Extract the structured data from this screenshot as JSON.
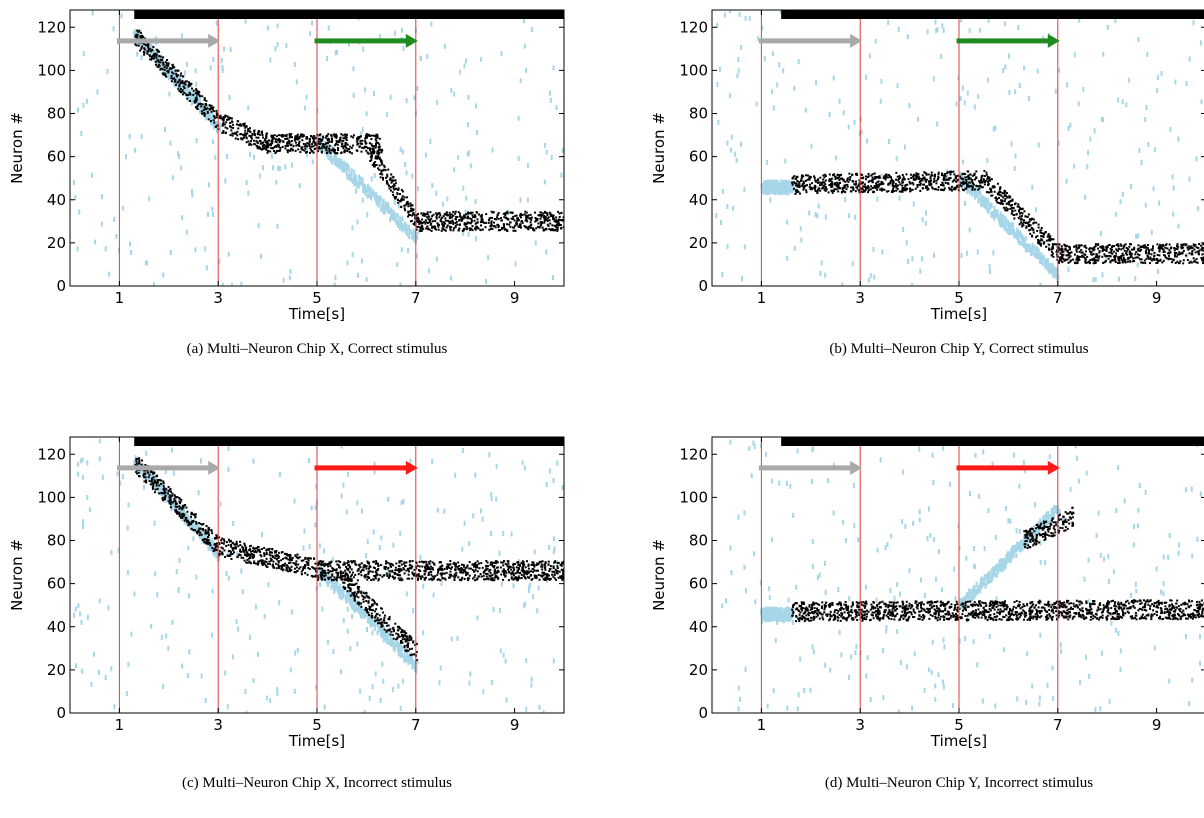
{
  "figure": {
    "colors": {
      "spikes": "#000000",
      "input_spikes": "#a6d6e8",
      "markers": "#e23b3b",
      "top_bar": "#000000",
      "training_arrow": "#a9a9a9",
      "correct_arrow": "#1e8c1e",
      "incorrect_arrow": "#ff1a1a"
    }
  },
  "chart_data": [
    {
      "type": "scatter",
      "caption": "(a) Multi–Neuron Chip X, Correct stimulus",
      "xlabel": "Time[s]",
      "ylabel": "Neuron #",
      "xlim": [
        0,
        10
      ],
      "ylim": [
        0,
        128
      ],
      "xticks": [
        1,
        3,
        5,
        7,
        9
      ],
      "yticks": [
        0,
        20,
        40,
        60,
        80,
        100,
        120
      ],
      "markers_x": [
        1,
        3,
        5,
        7
      ],
      "top_bar": [
        1.3,
        10
      ],
      "arrows": [
        {
          "role": "training",
          "color": "gray",
          "x": [
            1,
            3
          ],
          "y": 116
        },
        {
          "role": "test",
          "color": "green",
          "x": [
            5,
            7
          ],
          "y": 116
        }
      ],
      "input_stimulus": [
        {
          "t": [
            1.3,
            3.0
          ],
          "neuron": [
            117,
            74
          ]
        },
        {
          "t": [
            5.0,
            7.0
          ],
          "neuron": [
            67,
            22
          ]
        }
      ],
      "network_activity": [
        {
          "t": [
            1.3,
            3.0
          ],
          "neuron": [
            116,
            76
          ]
        },
        {
          "t": [
            3.0,
            4.0
          ],
          "neuron": [
            76,
            66
          ]
        },
        {
          "t": [
            4.0,
            6.3
          ],
          "neuron": [
            66,
            66
          ]
        },
        {
          "t": [
            6.0,
            7.0
          ],
          "neuron": [
            64,
            30
          ]
        },
        {
          "t": [
            7.0,
            10.0
          ],
          "neuron": [
            30,
            30
          ]
        }
      ]
    },
    {
      "type": "scatter",
      "caption": "(b) Multi–Neuron Chip Y, Correct stimulus",
      "xlabel": "Time[s]",
      "ylabel": "Neuron #",
      "xlim": [
        0,
        10
      ],
      "ylim": [
        0,
        128
      ],
      "xticks": [
        1,
        3,
        5,
        7,
        9
      ],
      "yticks": [
        0,
        20,
        40,
        60,
        80,
        100,
        120
      ],
      "markers_x": [
        1,
        3,
        5,
        7
      ],
      "top_bar": [
        1.4,
        10
      ],
      "arrows": [
        {
          "role": "training",
          "color": "gray",
          "x": [
            1,
            3
          ],
          "y": 116
        },
        {
          "role": "test",
          "color": "green",
          "x": [
            5,
            7
          ],
          "y": 116
        }
      ],
      "input_stimulus": [
        {
          "t": [
            1.0,
            1.6
          ],
          "neuron": [
            46,
            46
          ]
        },
        {
          "t": [
            5.0,
            7.0
          ],
          "neuron": [
            50,
            5
          ]
        }
      ],
      "network_activity": [
        {
          "t": [
            1.6,
            5.5
          ],
          "neuron": [
            47,
            49
          ]
        },
        {
          "t": [
            5.5,
            7.0
          ],
          "neuron": [
            49,
            15
          ]
        },
        {
          "t": [
            7.0,
            10.0
          ],
          "neuron": [
            15,
            15
          ]
        }
      ]
    },
    {
      "type": "scatter",
      "caption": "(c) Multi–Neuron Chip X, Incorrect stimulus",
      "xlabel": "Time[s]",
      "ylabel": "Neuron #",
      "xlim": [
        0,
        10
      ],
      "ylim": [
        0,
        128
      ],
      "xticks": [
        1,
        3,
        5,
        7,
        9
      ],
      "yticks": [
        0,
        20,
        40,
        60,
        80,
        100,
        120
      ],
      "markers_x": [
        1,
        3,
        5,
        7
      ],
      "top_bar": [
        1.3,
        10
      ],
      "arrows": [
        {
          "role": "training",
          "color": "gray",
          "x": [
            1,
            3
          ],
          "y": 116
        },
        {
          "role": "test",
          "color": "red",
          "x": [
            5,
            7
          ],
          "y": 116
        }
      ],
      "input_stimulus": [
        {
          "t": [
            1.3,
            3.0
          ],
          "neuron": [
            117,
            74
          ]
        },
        {
          "t": [
            5.0,
            7.0
          ],
          "neuron": [
            67,
            22
          ]
        }
      ],
      "network_activity": [
        {
          "t": [
            1.3,
            3.0
          ],
          "neuron": [
            116,
            77
          ]
        },
        {
          "t": [
            3.0,
            5.0
          ],
          "neuron": [
            77,
            67
          ]
        },
        {
          "t": [
            5.0,
            10.0
          ],
          "neuron": [
            66,
            66
          ]
        },
        {
          "t": [
            5.5,
            7.0
          ],
          "neuron": [
            62,
            28
          ]
        }
      ]
    },
    {
      "type": "scatter",
      "caption": "(d) Multi–Neuron Chip Y, Incorrect stimulus",
      "xlabel": "Time[s]",
      "ylabel": "Neuron #",
      "xlim": [
        0,
        10
      ],
      "ylim": [
        0,
        128
      ],
      "xticks": [
        1,
        3,
        5,
        7,
        9
      ],
      "yticks": [
        0,
        20,
        40,
        60,
        80,
        100,
        120
      ],
      "markers_x": [
        1,
        3,
        5,
        7
      ],
      "top_bar": [
        1.4,
        10
      ],
      "arrows": [
        {
          "role": "training",
          "color": "gray",
          "x": [
            1,
            3
          ],
          "y": 116
        },
        {
          "role": "test",
          "color": "red",
          "x": [
            5,
            7
          ],
          "y": 116
        }
      ],
      "input_stimulus": [
        {
          "t": [
            1.0,
            1.6
          ],
          "neuron": [
            46,
            46
          ]
        },
        {
          "t": [
            5.0,
            7.0
          ],
          "neuron": [
            50,
            95
          ]
        }
      ],
      "network_activity": [
        {
          "t": [
            1.6,
            10.0
          ],
          "neuron": [
            47,
            48
          ]
        },
        {
          "t": [
            6.3,
            7.3
          ],
          "neuron": [
            80,
            91
          ]
        }
      ]
    }
  ]
}
